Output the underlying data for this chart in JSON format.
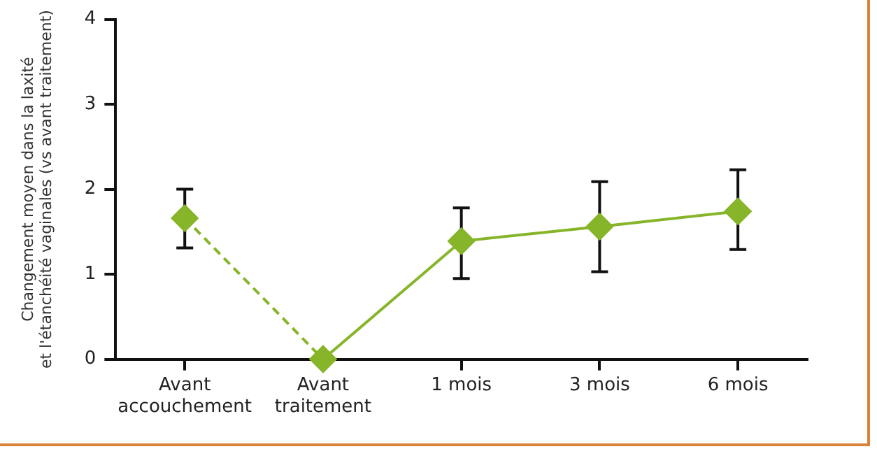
{
  "chart_data": {
    "type": "line",
    "ylabel": "Changement moyen dans la laxité\net l'étanchéité vaginales (vs avant traitement)",
    "categories": [
      "Avant accouchement",
      "Avant traitement",
      "1 mois",
      "3 mois",
      "6 mois"
    ],
    "series": [
      {
        "color": "#86b52a",
        "line_style": "dashed",
        "values": [
          1.66,
          0,
          null,
          null,
          null
        ],
        "errors": [
          [
            1.31,
            2.0
          ],
          null,
          null,
          null,
          null
        ]
      },
      {
        "color": "#86b52a",
        "line_style": "solid",
        "values": [
          null,
          0,
          1.39,
          1.56,
          1.74
        ],
        "errors": [
          null,
          null,
          [
            0.95,
            1.78
          ],
          [
            1.03,
            2.09
          ],
          [
            1.29,
            2.23
          ]
        ]
      }
    ],
    "ylim": [
      0,
      4
    ],
    "yticks": [
      0,
      1,
      2,
      3,
      4
    ],
    "grid": false,
    "legend": false,
    "marker": "diamond"
  }
}
